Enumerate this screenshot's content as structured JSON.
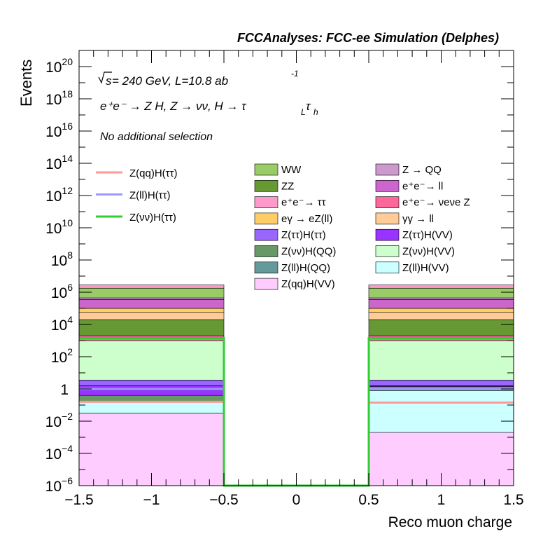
{
  "chart_data": {
    "type": "bar",
    "title": "FCCAnalyses: FCC-ee Simulation (Delphes)",
    "xlabel": "Reco muon charge",
    "ylabel": "Events",
    "xlim": [
      -1.5,
      1.5
    ],
    "ylim_log10": [
      -6,
      21
    ],
    "log_y": true,
    "grid": false,
    "legend_placement": "upper-center",
    "x_ticks": [
      "−1.5",
      "−1",
      "−0.5",
      "0",
      "0.5",
      "1",
      "1.5"
    ],
    "y_ticks": [
      {
        "base": "10",
        "exp": "20"
      },
      {
        "base": "10",
        "exp": "18"
      },
      {
        "base": "10",
        "exp": "16"
      },
      {
        "base": "10",
        "exp": "14"
      },
      {
        "base": "10",
        "exp": "12"
      },
      {
        "base": "10",
        "exp": "10"
      },
      {
        "base": "10",
        "exp": "8"
      },
      {
        "base": "10",
        "exp": "6"
      },
      {
        "base": "10",
        "exp": "4"
      },
      {
        "base": "10",
        "exp": "2"
      },
      {
        "base": "1",
        "exp": ""
      },
      {
        "base": "10",
        "exp": "−2"
      },
      {
        "base": "10",
        "exp": "−4"
      },
      {
        "base": "10",
        "exp": "−6"
      }
    ],
    "annotations": {
      "sqrt_s": "s",
      "energy_lumi": " = 240 GeV, L=10.8 ab",
      "lumi_exp": "-1",
      "process": "e⁺e⁻ → Z H, Z → νν, H → τ",
      "process_sub1": "L",
      "process_tau": "τ",
      "process_sub2": "h",
      "selection": "No additional selection"
    },
    "bins": [
      {
        "low": -1.5,
        "high": -0.5
      },
      {
        "low": -0.5,
        "high": 0.5
      },
      {
        "low": 0.5,
        "high": 1.5
      }
    ],
    "stack": [
      {
        "name": "Z(qq)H(VV)",
        "color": "#ffccff",
        "top_log10": [
          -1.5,
          null,
          -1.7
        ]
      },
      {
        "name": "Z(ll)H(QQ)",
        "color": "#669999",
        "top_log10": [
          -1.5,
          null,
          -2.7
        ]
      },
      {
        "name": "Z(ll)H(VV)",
        "color": "#ccffff",
        "top_log10": [
          -0.8,
          null,
          -0.1
        ]
      },
      {
        "name": "Z(νν)H(QQ)",
        "color": "#669966",
        "top_log10": [
          -0.4,
          null,
          0.15
        ]
      },
      {
        "name": "Z(ττ)H(VV)",
        "color": "#9933ff",
        "top_log10": [
          0.2,
          null,
          0.2
        ]
      },
      {
        "name": "Z(ττ)H(ττ)",
        "color": "#9966ff",
        "top_log10": [
          0.55,
          null,
          0.55
        ]
      },
      {
        "name": "Z(νν)H(VV)",
        "color": "#ccffcc",
        "top_log10": [
          3.0,
          null,
          3.0
        ]
      },
      {
        "name": "e⁺e⁻→ νeνe Z",
        "color": "#ff6699",
        "top_log10": [
          3.3,
          null,
          3.3
        ]
      },
      {
        "name": "ZZ",
        "color": "#669933",
        "top_log10": [
          4.3,
          null,
          4.3
        ]
      },
      {
        "name": "γγ → ll",
        "color": "#ffcc99",
        "top_log10": [
          4.75,
          null,
          4.75
        ]
      },
      {
        "name": "eγ → eZ(ll)",
        "color": "#ffcc66",
        "top_log10": [
          5.0,
          null,
          5.0
        ]
      },
      {
        "name": "e⁺e⁻→ ll",
        "color": "#cc66cc",
        "top_log10": [
          5.55,
          null,
          5.55
        ]
      },
      {
        "name": "Z → QQ",
        "color": "#cc99cc",
        "top_log10": [
          5.65,
          null,
          5.65
        ]
      },
      {
        "name": "WW",
        "color": "#99cc66",
        "top_log10": [
          6.25,
          null,
          6.25
        ]
      },
      {
        "name": "e⁺e⁻→ ττ",
        "color": "#ff99cc",
        "top_log10": [
          6.45,
          null,
          6.45
        ]
      }
    ],
    "signals": [
      {
        "name": "Z(qq)H(ττ)",
        "color": "#ff9999",
        "value_log10": [
          -0.8,
          -6.0,
          -0.85
        ]
      },
      {
        "name": "Z(ll)H(ττ)",
        "color": "#9999ff",
        "value_log10": [
          0.0,
          -6.0,
          0.0
        ]
      },
      {
        "name": "Z(νν)H(ττ)",
        "color": "#33cc33",
        "value_log10": [
          3.15,
          -6.0,
          3.15
        ]
      }
    ],
    "legend_left": [
      "Z(qq)H(ττ)",
      "Z(ll)H(ττ)",
      "Z(νν)H(ττ)"
    ],
    "legend_mid": [
      {
        "label": "WW",
        "color": "#99cc66"
      },
      {
        "label": "ZZ",
        "color": "#669933"
      },
      {
        "label": "e⁺e⁻→ ττ",
        "color": "#ff99cc"
      },
      {
        "label": "eγ → eZ(ll)",
        "color": "#ffcc66"
      },
      {
        "label": "Z(ττ)H(ττ)",
        "color": "#9966ff"
      },
      {
        "label": "Z(νν)H(QQ)",
        "color": "#669966"
      },
      {
        "label": "Z(ll)H(QQ)",
        "color": "#669999"
      },
      {
        "label": "Z(qq)H(VV)",
        "color": "#ffccff"
      }
    ],
    "legend_right": [
      {
        "label": "Z → QQ",
        "color": "#cc99cc"
      },
      {
        "label": "e⁺e⁻→ ll",
        "color": "#cc66cc"
      },
      {
        "label": "e⁺e⁻→ νeνe Z",
        "color": "#ff6699"
      },
      {
        "label": "γγ → ll",
        "color": "#ffcc99"
      },
      {
        "label": "Z(ττ)H(VV)",
        "color": "#9933ff"
      },
      {
        "label": "Z(νν)H(VV)",
        "color": "#ccffcc"
      },
      {
        "label": "Z(ll)H(VV)",
        "color": "#ccffff"
      }
    ]
  }
}
